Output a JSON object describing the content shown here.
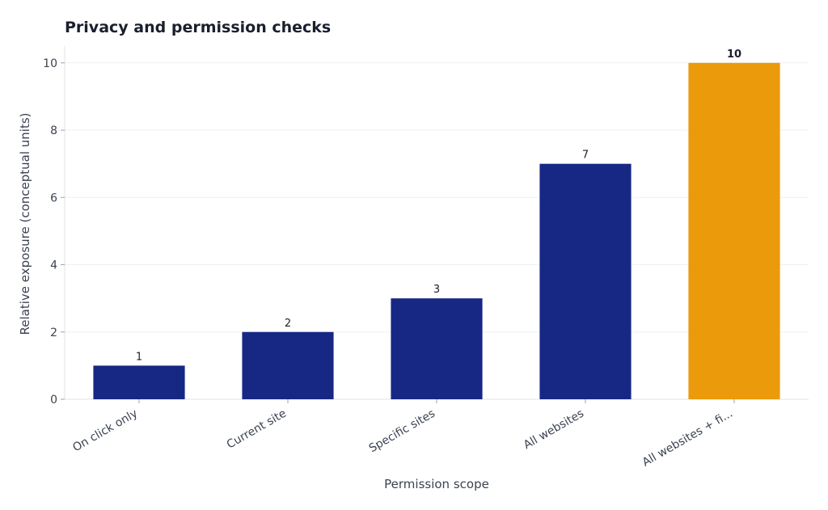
{
  "chart_data": {
    "type": "bar",
    "title": "Privacy and permission checks",
    "xlabel": "Permission scope",
    "ylabel": "Relative exposure (conceptual units)",
    "categories": [
      "On click only",
      "Current site",
      "Specific sites",
      "All websites",
      "All websites + fi..."
    ],
    "values": [
      1,
      2,
      3,
      7,
      10
    ],
    "value_labels": [
      "1",
      "2",
      "3",
      "7",
      "10"
    ],
    "yticks": [
      "0",
      "2",
      "4",
      "6",
      "8",
      "10"
    ],
    "ylim": [
      0,
      10.5
    ],
    "grid": "horizontal",
    "legend": "none",
    "highlight_index": 4,
    "colors": {
      "bar": "#172884",
      "highlight": "#eb9a0b",
      "highlight_label": "#eb9a0b",
      "grid": "#edf0f3",
      "axis": "#dfe3e8"
    }
  }
}
